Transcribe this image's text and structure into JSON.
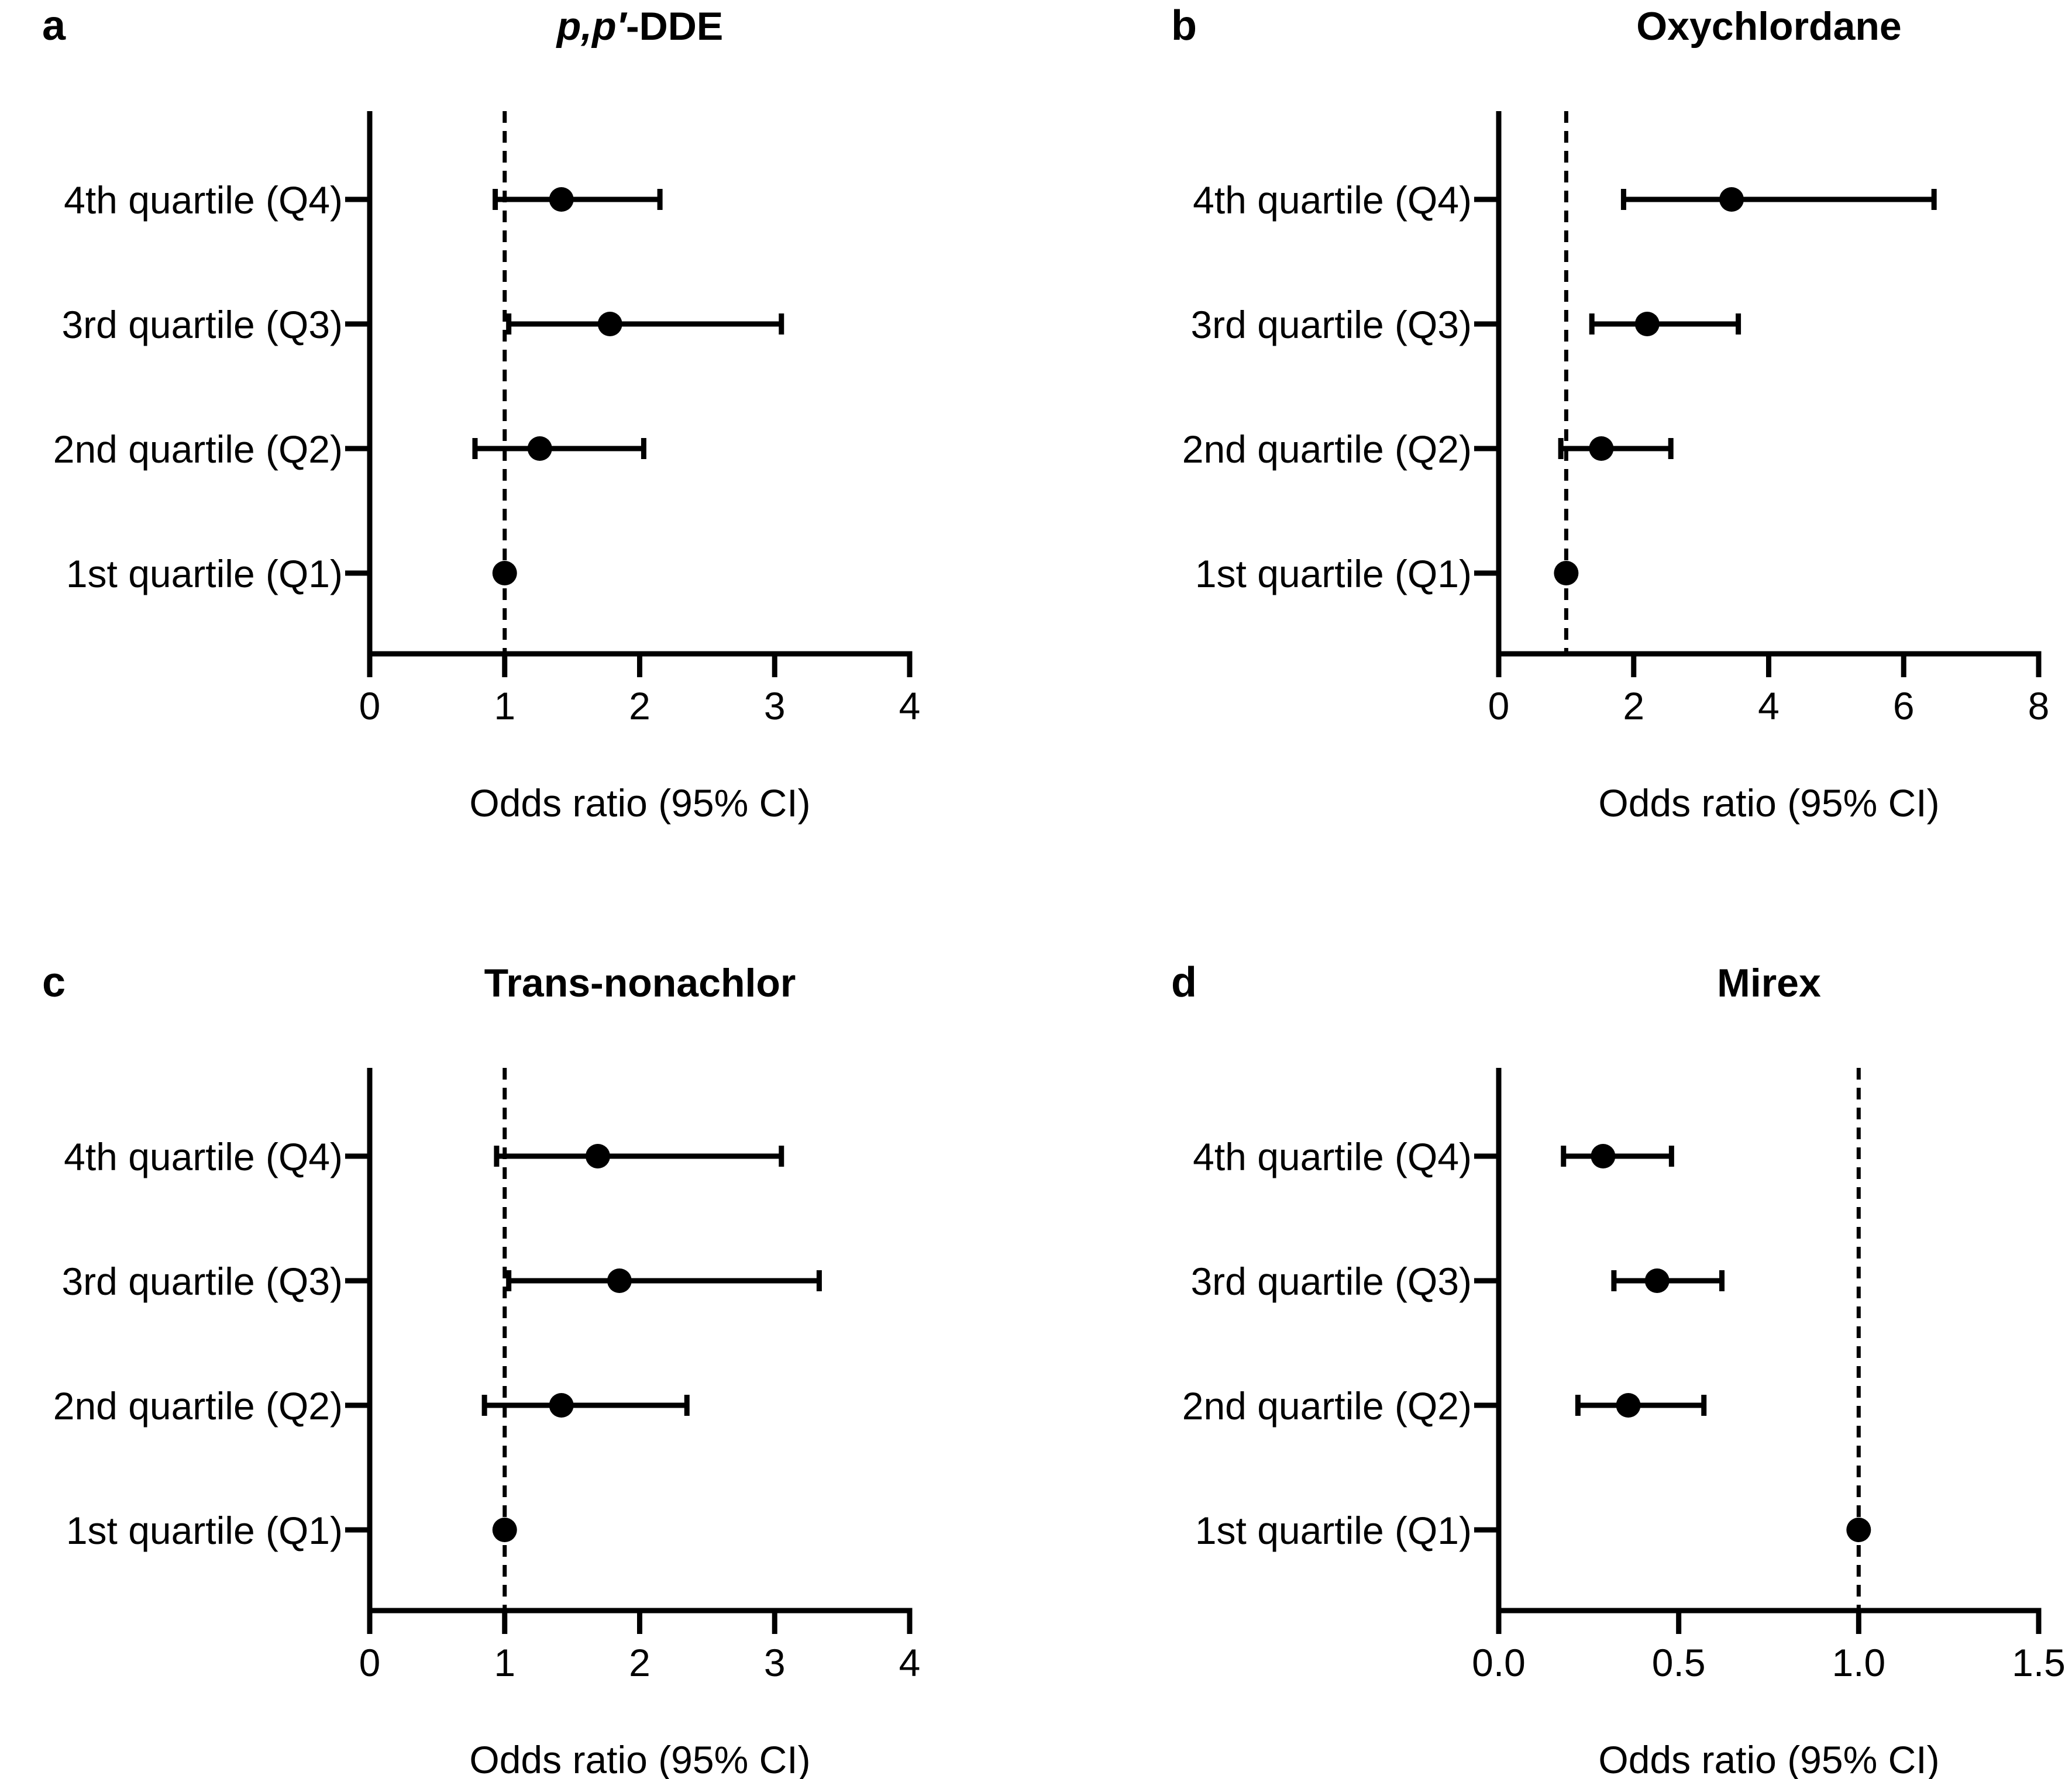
{
  "figure": {
    "colors": {
      "ink": "#000000",
      "background": "#ffffff"
    }
  },
  "chart_data": [
    {
      "panel": "a",
      "type": "forest",
      "title": "p,p′-DDE",
      "title_parts": [
        {
          "text": "p,p′",
          "italic": true
        },
        {
          "text": "-DDE",
          "italic": false
        }
      ],
      "xlabel": "Odds ratio (95% CI)",
      "xlim": [
        0,
        4
      ],
      "xticks": [
        "0",
        "1",
        "2",
        "3",
        "4"
      ],
      "xtick_values": [
        0,
        1,
        2,
        3,
        4
      ],
      "reference_line": 1,
      "categories": [
        "4th quartile (Q4)",
        "3rd quartile (Q3)",
        "2nd quartile (Q2)",
        "1st quartile (Q1)"
      ],
      "or": [
        1.42,
        1.78,
        1.26,
        1.0
      ],
      "ci_low": [
        0.93,
        1.03,
        0.78,
        null
      ],
      "ci_high": [
        2.15,
        3.05,
        2.03,
        null
      ]
    },
    {
      "panel": "b",
      "type": "forest",
      "title": "Oxychlordane",
      "title_parts": [
        {
          "text": "Oxychlordane",
          "italic": false
        }
      ],
      "xlabel": "Odds ratio (95% CI)",
      "xlim": [
        0,
        8
      ],
      "xticks": [
        "0",
        "2",
        "4",
        "6",
        "8"
      ],
      "xtick_values": [
        0,
        2,
        4,
        6,
        8
      ],
      "reference_line": 1,
      "categories": [
        "4th quartile (Q4)",
        "3rd quartile (Q3)",
        "2nd quartile (Q2)",
        "1st quartile (Q1)"
      ],
      "or": [
        3.45,
        2.2,
        1.52,
        1.0
      ],
      "ci_low": [
        1.85,
        1.38,
        0.92,
        null
      ],
      "ci_high": [
        6.45,
        3.55,
        2.55,
        null
      ]
    },
    {
      "panel": "c",
      "type": "forest",
      "title": "Trans-nonachlor",
      "title_parts": [
        {
          "text": "Trans-nonachlor",
          "italic": false
        }
      ],
      "xlabel": "Odds ratio (95% CI)",
      "xlim": [
        0,
        4
      ],
      "xticks": [
        "0",
        "1",
        "2",
        "3",
        "4"
      ],
      "xtick_values": [
        0,
        1,
        2,
        3,
        4
      ],
      "reference_line": 1,
      "categories": [
        "4th quartile (Q4)",
        "3rd quartile (Q3)",
        "2nd quartile (Q2)",
        "1st quartile (Q1)"
      ],
      "or": [
        1.69,
        1.85,
        1.42,
        1.0
      ],
      "ci_low": [
        0.94,
        1.03,
        0.85,
        null
      ],
      "ci_high": [
        3.05,
        3.33,
        2.35,
        null
      ]
    },
    {
      "panel": "d",
      "type": "forest",
      "title": "Mirex",
      "title_parts": [
        {
          "text": "Mirex",
          "italic": false
        }
      ],
      "xlabel": "Odds ratio (95% CI)",
      "xlim": [
        0,
        1.5
      ],
      "xticks": [
        "0.0",
        "0.5",
        "1.0",
        "1.5"
      ],
      "xtick_values": [
        0,
        0.5,
        1.0,
        1.5
      ],
      "reference_line": 1,
      "categories": [
        "4th quartile (Q4)",
        "3rd quartile (Q3)",
        "2nd quartile (Q2)",
        "1st quartile (Q1)"
      ],
      "or": [
        0.29,
        0.44,
        0.36,
        1.0
      ],
      "ci_low": [
        0.18,
        0.32,
        0.22,
        null
      ],
      "ci_high": [
        0.48,
        0.62,
        0.57,
        null
      ]
    }
  ]
}
